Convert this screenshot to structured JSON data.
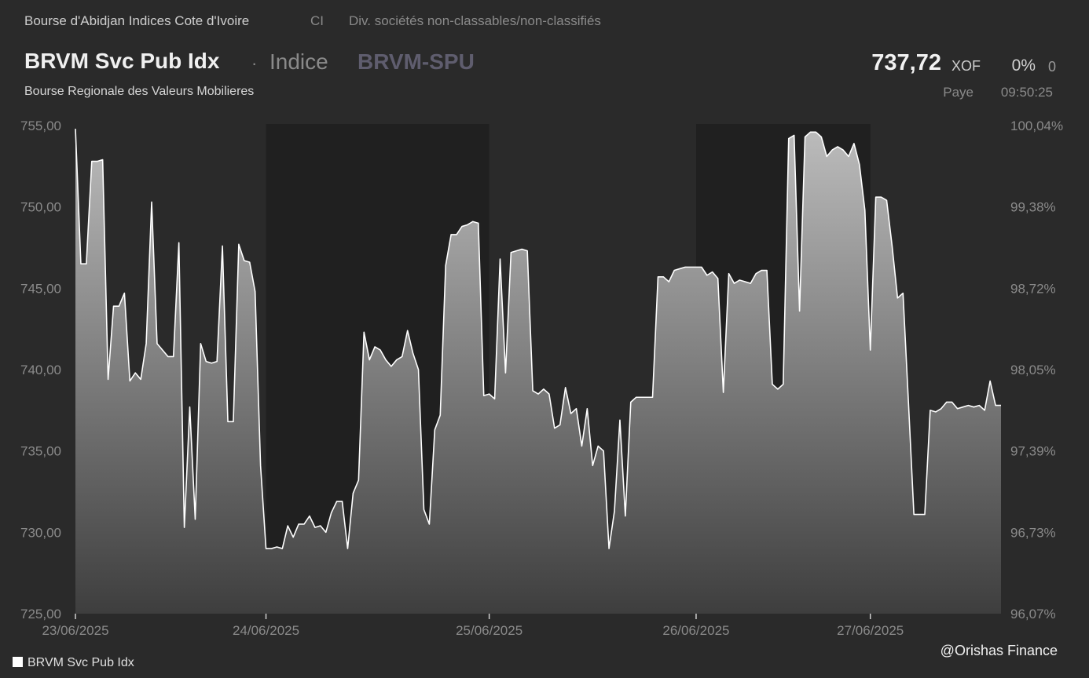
{
  "header": {
    "exchange": "Bourse d'Abidjan Indices Cote d'Ivoire",
    "country": "CI",
    "sector": "Div. sociétés non-classables/non-classifiés",
    "title": "BRVM Svc Pub Idx",
    "separator": "·",
    "instrument_type": "Indice",
    "ticker": "BRVM-SPU",
    "subtitle": "Bourse Regionale des Valeurs Mobilieres"
  },
  "quote": {
    "price": "737,72",
    "currency": "XOF",
    "change_pct": "0%",
    "change": "0",
    "status": "Paye",
    "time": "09:50:25"
  },
  "legend": {
    "label": "BRVM Svc Pub Idx"
  },
  "watermark": "@Orishas Finance",
  "colors": {
    "background": "#2a2a2a",
    "shaded_band": "#202020",
    "line": "#ffffff",
    "area_top": "#bcbcbc",
    "area_bottom": "#3e3e3e",
    "axis_text": "#8a8a8a"
  },
  "chart_data": {
    "type": "area",
    "title": "BRVM Svc Pub Idx",
    "xlabel": "",
    "ylabel": "",
    "ylim": [
      725,
      755
    ],
    "y_ticks": [
      "725,00",
      "730,00",
      "735,00",
      "740,00",
      "745,00",
      "750,00",
      "755,00"
    ],
    "y2_ticks": [
      "96,07%",
      "96,73%",
      "97,39%",
      "98,05%",
      "98,72%",
      "99,38%",
      "100,04%"
    ],
    "x_ticks": [
      "23/06/2025",
      "24/06/2025",
      "25/06/2025",
      "26/06/2025",
      "27/06/2025"
    ],
    "day_ranges": [
      {
        "label": "23/06/2025",
        "start": 0,
        "end": 35,
        "shaded": false
      },
      {
        "label": "24/06/2025",
        "start": 35,
        "end": 76,
        "shaded": true
      },
      {
        "label": "25/06/2025",
        "start": 76,
        "end": 114,
        "shaded": false
      },
      {
        "label": "26/06/2025",
        "start": 114,
        "end": 146,
        "shaded": true
      },
      {
        "label": "27/06/2025",
        "start": 146,
        "end": 181,
        "shaded": false
      }
    ],
    "series": [
      {
        "name": "BRVM Svc Pub Idx",
        "values": [
          754.8,
          746.5,
          746.5,
          752.8,
          752.8,
          752.9,
          739.4,
          743.9,
          743.9,
          744.7,
          739.3,
          739.8,
          739.4,
          741.6,
          750.3,
          741.6,
          741.2,
          740.8,
          740.8,
          747.8,
          730.3,
          737.7,
          730.8,
          741.6,
          740.5,
          740.4,
          740.5,
          747.6,
          736.8,
          736.8,
          747.7,
          746.7,
          746.6,
          744.8,
          734.1,
          729.0,
          729.0,
          729.1,
          729.0,
          730.4,
          729.7,
          730.5,
          730.5,
          731.0,
          730.3,
          730.4,
          730.0,
          731.2,
          731.9,
          731.9,
          729.0,
          732.4,
          733.2,
          742.3,
          740.6,
          741.4,
          741.2,
          740.6,
          740.2,
          740.6,
          740.8,
          742.4,
          741.0,
          740.0,
          731.4,
          730.5,
          736.3,
          737.2,
          746.4,
          748.3,
          748.3,
          748.8,
          748.9,
          749.1,
          749.0,
          738.4,
          738.5,
          738.2,
          746.8,
          739.8,
          747.2,
          747.3,
          747.4,
          747.3,
          738.7,
          738.5,
          738.8,
          738.5,
          736.4,
          736.6,
          738.9,
          737.3,
          737.6,
          735.3,
          737.6,
          734.1,
          735.3,
          735.0,
          729.0,
          731.3,
          736.9,
          731.0,
          738.0,
          738.3,
          738.3,
          738.3,
          738.3,
          745.7,
          745.7,
          745.4,
          746.1,
          746.2,
          746.3,
          746.3,
          746.3,
          746.3,
          745.8,
          746.0,
          745.6,
          738.6,
          745.9,
          745.3,
          745.5,
          745.4,
          745.3,
          745.9,
          746.1,
          746.1,
          739.1,
          738.8,
          739.1,
          754.2,
          754.4,
          743.6,
          754.3,
          754.6,
          754.6,
          754.3,
          753.1,
          753.5,
          753.7,
          753.5,
          753.1,
          753.9,
          752.6,
          749.8,
          741.2,
          750.6,
          750.6,
          750.4,
          747.6,
          744.4,
          744.7,
          738.0,
          731.1,
          731.1,
          731.1,
          737.5,
          737.4,
          737.6,
          738.0,
          738.0,
          737.6,
          737.7,
          737.8,
          737.7,
          737.8,
          737.5,
          739.3,
          737.8,
          737.8
        ]
      }
    ]
  }
}
